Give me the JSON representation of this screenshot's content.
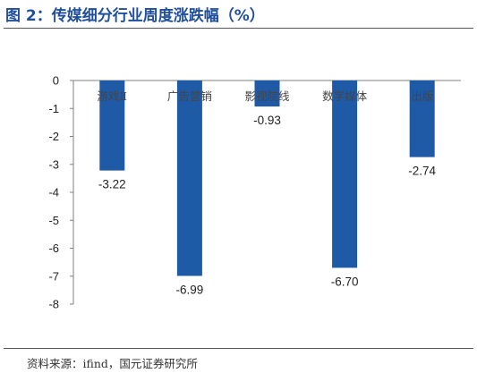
{
  "figure": {
    "title": "图 2：传媒细分行业周度涨跌幅（%）",
    "source": "资料来源：ifind，国元证券研究所"
  },
  "colors": {
    "bar": "#1f5aa6",
    "title": "#1f4e9c",
    "axis": "#808080"
  },
  "chart_data": {
    "type": "bar",
    "title": "",
    "xlabel": "",
    "ylabel": "",
    "categories": [
      "游戏Ⅱ",
      "广告营销",
      "影视院线",
      "数字媒体",
      "出版"
    ],
    "values": [
      -3.22,
      -6.99,
      -0.93,
      -6.7,
      -2.74
    ],
    "value_labels": [
      "-3.22",
      "-6.99",
      "-0.93",
      "-6.70",
      "-2.74"
    ],
    "ylim": [
      -8,
      0
    ],
    "yticks": [
      0,
      -1,
      -2,
      -3,
      -4,
      -5,
      -6,
      -7,
      -8
    ],
    "ytick_labels": [
      "0",
      "-1",
      "-2",
      "-3",
      "-4",
      "-5",
      "-6",
      "-7",
      "-8"
    ],
    "grid": false,
    "legend": "none"
  }
}
